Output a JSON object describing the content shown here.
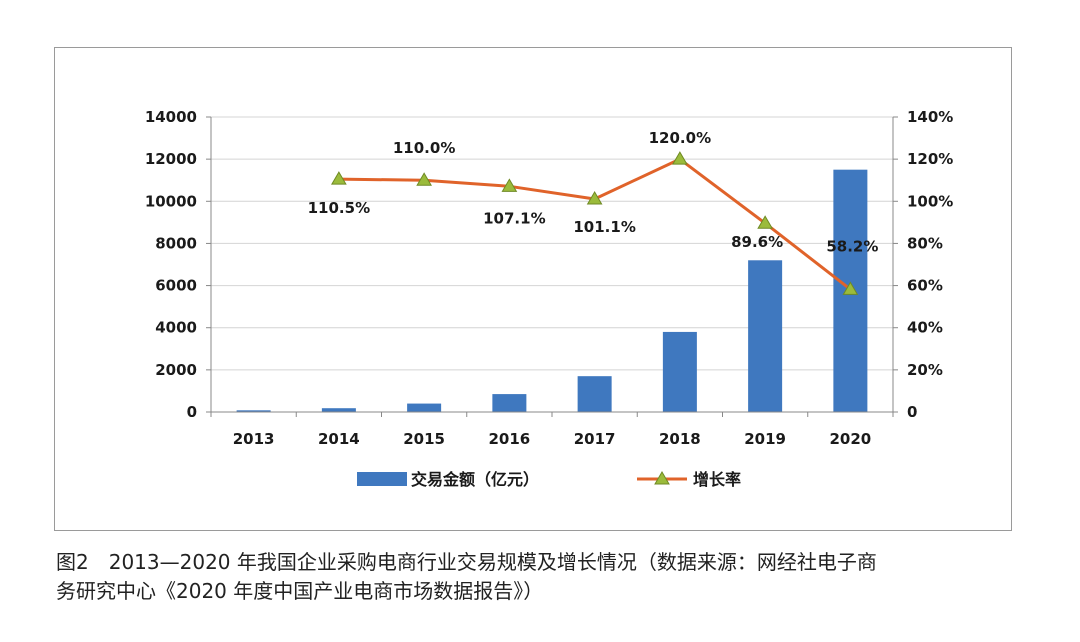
{
  "chart_data": {
    "type": "bar",
    "categories": [
      "2013",
      "2014",
      "2015",
      "2016",
      "2017",
      "2018",
      "2019",
      "2020"
    ],
    "series": [
      {
        "name": "交易金额（亿元）",
        "type": "bar",
        "axis": "left",
        "values": [
          80,
          180,
          400,
          850,
          1700,
          3800,
          7200,
          11500
        ],
        "color": "#3f78bf"
      },
      {
        "name": "增长率",
        "type": "line",
        "axis": "right",
        "values": [
          null,
          110.5,
          110.0,
          107.1,
          101.1,
          120.0,
          89.6,
          58.2
        ],
        "labels": [
          "",
          "110.5%",
          "110.0%",
          "107.1%",
          "101.1%",
          "120.0%",
          "89.6%",
          "58.2%"
        ],
        "color": "#e0632a",
        "marker_color": "#9bbb3b"
      }
    ],
    "y_left": {
      "min": 0,
      "max": 14000,
      "ticks": [
        "0",
        "2000",
        "4000",
        "6000",
        "8000",
        "10000",
        "12000",
        "14000"
      ]
    },
    "y_right": {
      "min": 0,
      "max": 140,
      "ticks": [
        "0",
        "20%",
        "40%",
        "60%",
        "80%",
        "100%",
        "120%",
        "140%"
      ]
    },
    "grid": true,
    "legend_position": "bottom"
  },
  "caption": {
    "line1": "图2　2013—2020 年我国企业采购电商行业交易规模及增长情况（数据来源：网经社电子商",
    "line2": "务研究中心《2020 年度中国产业电商市场数据报告》）"
  }
}
